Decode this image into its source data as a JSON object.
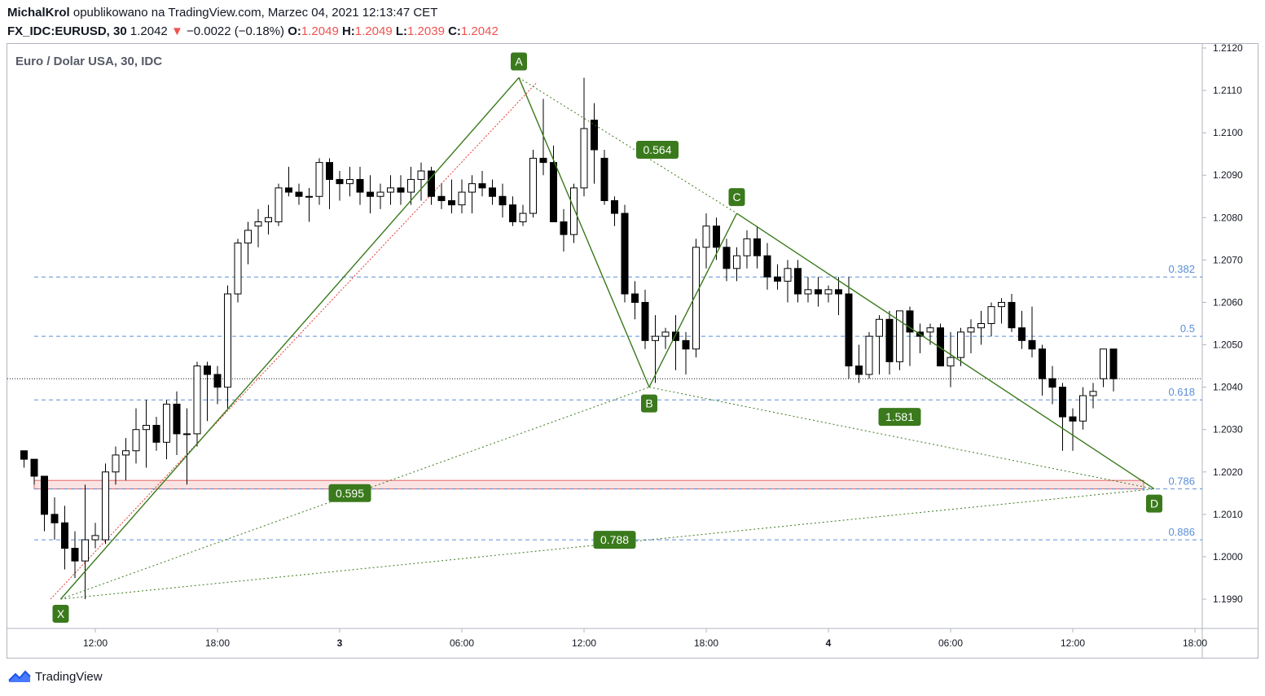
{
  "header": {
    "author": "MichalKrol",
    "published_text": "opublikowano na TradingView.com, Marzec 04, 2021 12:13:47 CET",
    "symbol": "FX_IDC:EURUSD, 30",
    "last_price": "1.2042",
    "change_arrow": "▼",
    "change": "−0.0022 (−0.18%)",
    "o_label": "O:",
    "o_value": "1.2049",
    "h_label": "H:",
    "h_value": "1.2049",
    "l_label": "L:",
    "l_value": "1.2039",
    "c_label": "C:",
    "c_value": "1.2042"
  },
  "chart_title": "Euro / Dolar USA, 30, IDC",
  "brand": "TradingView",
  "colors": {
    "pattern_green": "#3a7a1c",
    "fib_blue": "#5b8fd6",
    "zone_red": "#e06666",
    "zone_fill": "#fbe3e3",
    "down_red": "#ef5350",
    "candle": "#000000"
  },
  "chart_data": {
    "type": "candlestick",
    "ylim": [
      1.1983,
      1.2123
    ],
    "x_start_hour": 8.5,
    "x_end_hour": 60.5,
    "bar_hours": 0.5,
    "price_ticks": [
      "1.2120",
      "1.2110",
      "1.2100",
      "1.2090",
      "1.2080",
      "1.2070",
      "1.2060",
      "1.2050",
      "1.2040",
      "1.2030",
      "1.2020",
      "1.2010",
      "1.2000",
      "1.1990"
    ],
    "time_ticks": [
      {
        "label": "12:00",
        "hour": 12
      },
      {
        "label": "18:00",
        "hour": 18
      },
      {
        "label": "3",
        "hour": 24
      },
      {
        "label": "06:00",
        "hour": 30
      },
      {
        "label": "12:00",
        "hour": 36
      },
      {
        "label": "18:00",
        "hour": 42
      },
      {
        "label": "4",
        "hour": 48
      },
      {
        "label": "06:00",
        "hour": 54
      },
      {
        "label": "12:00",
        "hour": 60
      },
      {
        "label": "18:00",
        "hour": 66
      }
    ],
    "candles": [
      [
        1.2025,
        1.2025,
        1.2021,
        1.2023
      ],
      [
        1.2023,
        1.2023,
        1.2017,
        1.2019
      ],
      [
        1.2019,
        1.2019,
        1.2006,
        1.201
      ],
      [
        1.201,
        1.2014,
        1.2004,
        1.2008
      ],
      [
        1.2008,
        1.2012,
        1.1997,
        1.2002
      ],
      [
        1.2002,
        1.2006,
        1.1995,
        1.1999
      ],
      [
        1.1999,
        1.2017,
        1.199,
        1.2004
      ],
      [
        1.2004,
        1.2008,
        1.2002,
        1.2005
      ],
      [
        1.2004,
        1.2022,
        1.2003,
        1.202
      ],
      [
        1.202,
        1.2026,
        1.2017,
        1.2024
      ],
      [
        1.2024,
        1.2028,
        1.2018,
        1.2025
      ],
      [
        1.2025,
        1.2035,
        1.2022,
        1.203
      ],
      [
        1.203,
        1.2037,
        1.2021,
        1.2031
      ],
      [
        1.2031,
        1.2033,
        1.2025,
        1.2027
      ],
      [
        1.2027,
        1.2037,
        1.2023,
        1.2036
      ],
      [
        1.2036,
        1.2039,
        1.2024,
        1.2029
      ],
      [
        1.2029,
        1.2035,
        1.2017,
        1.2029
      ],
      [
        1.2029,
        1.2046,
        1.2026,
        1.2045
      ],
      [
        1.2045,
        1.2046,
        1.2032,
        1.2043
      ],
      [
        1.2043,
        1.2045,
        1.2036,
        1.204
      ],
      [
        1.204,
        1.2064,
        1.2035,
        1.2062
      ],
      [
        1.2062,
        1.2075,
        1.206,
        1.2074
      ],
      [
        1.2074,
        1.2079,
        1.2069,
        1.2077
      ],
      [
        1.2078,
        1.2082,
        1.2073,
        1.2079
      ],
      [
        1.2079,
        1.2083,
        1.2076,
        1.208
      ],
      [
        1.2079,
        1.2088,
        1.2078,
        1.2087
      ],
      [
        1.2087,
        1.2092,
        1.2085,
        1.2086
      ],
      [
        1.2086,
        1.2088,
        1.2083,
        1.2085
      ],
      [
        1.2085,
        1.2087,
        1.2079,
        1.2085
      ],
      [
        1.2085,
        1.2094,
        1.2083,
        1.2093
      ],
      [
        1.2093,
        1.2094,
        1.2082,
        1.2089
      ],
      [
        1.2089,
        1.2091,
        1.2084,
        1.2088
      ],
      [
        1.2088,
        1.2092,
        1.2085,
        1.2089
      ],
      [
        1.2089,
        1.2092,
        1.2083,
        1.2086
      ],
      [
        1.2086,
        1.209,
        1.2081,
        1.2085
      ],
      [
        1.2085,
        1.2088,
        1.2082,
        1.2086
      ],
      [
        1.2086,
        1.209,
        1.2083,
        1.2087
      ],
      [
        1.2087,
        1.209,
        1.2083,
        1.2086
      ],
      [
        1.2086,
        1.2092,
        1.2083,
        1.2089
      ],
      [
        1.2089,
        1.2093,
        1.2084,
        1.2091
      ],
      [
        1.2091,
        1.2092,
        1.2083,
        1.2085
      ],
      [
        1.2085,
        1.2088,
        1.2082,
        1.2084
      ],
      [
        1.2084,
        1.2089,
        1.2081,
        1.2083
      ],
      [
        1.2083,
        1.2089,
        1.2081,
        1.2086
      ],
      [
        1.2086,
        1.209,
        1.2081,
        1.2088
      ],
      [
        1.2088,
        1.2091,
        1.2085,
        1.2087
      ],
      [
        1.2087,
        1.2089,
        1.2083,
        1.2085
      ],
      [
        1.2085,
        1.2088,
        1.208,
        1.2083
      ],
      [
        1.2083,
        1.2085,
        1.2078,
        1.2079
      ],
      [
        1.2079,
        1.2083,
        1.2078,
        1.2081
      ],
      [
        1.2081,
        1.2096,
        1.208,
        1.2094
      ],
      [
        1.2094,
        1.2108,
        1.209,
        1.2093
      ],
      [
        1.2093,
        1.2097,
        1.2079,
        1.2079
      ],
      [
        1.2079,
        1.2082,
        1.2072,
        1.2076
      ],
      [
        1.2076,
        1.2088,
        1.2074,
        1.2087
      ],
      [
        1.2087,
        1.2113,
        1.2085,
        1.2101
      ],
      [
        1.2103,
        1.2107,
        1.2088,
        1.2096
      ],
      [
        1.2094,
        1.2096,
        1.2083,
        1.2084
      ],
      [
        1.2084,
        1.2085,
        1.2078,
        1.2081
      ],
      [
        1.2081,
        1.2083,
        1.206,
        1.2062
      ],
      [
        1.2062,
        1.2065,
        1.2056,
        1.206
      ],
      [
        1.206,
        1.2063,
        1.2049,
        1.2051
      ],
      [
        1.2051,
        1.2057,
        1.2041,
        1.2052
      ],
      [
        1.2052,
        1.2054,
        1.2049,
        1.2053
      ],
      [
        1.2053,
        1.2057,
        1.2044,
        1.2051
      ],
      [
        1.2051,
        1.2053,
        1.2043,
        1.2049
      ],
      [
        1.2049,
        1.2075,
        1.2047,
        1.2073
      ],
      [
        1.2073,
        1.2081,
        1.2068,
        1.2078
      ],
      [
        1.2078,
        1.208,
        1.207,
        1.2073
      ],
      [
        1.2073,
        1.2075,
        1.2065,
        1.2068
      ],
      [
        1.2068,
        1.2073,
        1.2065,
        1.2071
      ],
      [
        1.2071,
        1.2077,
        1.2068,
        1.2075
      ],
      [
        1.2075,
        1.2078,
        1.2068,
        1.2071
      ],
      [
        1.2071,
        1.2074,
        1.2063,
        1.2066
      ],
      [
        1.2066,
        1.2069,
        1.2063,
        1.2065
      ],
      [
        1.2065,
        1.207,
        1.206,
        1.2068
      ],
      [
        1.2068,
        1.207,
        1.206,
        1.2062
      ],
      [
        1.2062,
        1.2066,
        1.206,
        1.2063
      ],
      [
        1.2063,
        1.2066,
        1.2059,
        1.2062
      ],
      [
        1.2062,
        1.2064,
        1.206,
        1.2063
      ],
      [
        1.2063,
        1.2066,
        1.2057,
        1.2062
      ],
      [
        1.2062,
        1.2066,
        1.2042,
        1.2045
      ],
      [
        1.2045,
        1.205,
        1.2041,
        1.2043
      ],
      [
        1.2043,
        1.2053,
        1.2042,
        1.2052
      ],
      [
        1.2052,
        1.2057,
        1.2043,
        1.2056
      ],
      [
        1.2056,
        1.2058,
        1.2043,
        1.2046
      ],
      [
        1.2046,
        1.2058,
        1.2044,
        1.2058
      ],
      [
        1.2058,
        1.2059,
        1.2045,
        1.2053
      ],
      [
        1.2053,
        1.2055,
        1.2048,
        1.2052
      ],
      [
        1.2053,
        1.2055,
        1.205,
        1.2054
      ],
      [
        1.2054,
        1.2055,
        1.2045,
        1.2045
      ],
      [
        1.2045,
        1.2053,
        1.204,
        1.2047
      ],
      [
        1.2047,
        1.2054,
        1.2045,
        1.2053
      ],
      [
        1.2053,
        1.2056,
        1.2048,
        1.2054
      ],
      [
        1.2054,
        1.2058,
        1.205,
        1.2055
      ],
      [
        1.2055,
        1.206,
        1.2052,
        1.2059
      ],
      [
        1.2059,
        1.2061,
        1.2055,
        1.206
      ],
      [
        1.206,
        1.2062,
        1.2053,
        1.2054
      ],
      [
        1.2054,
        1.2058,
        1.2049,
        1.2051
      ],
      [
        1.2051,
        1.2059,
        1.2047,
        1.2049
      ],
      [
        1.2049,
        1.205,
        1.2038,
        1.2042
      ],
      [
        1.2042,
        1.2045,
        1.2036,
        1.204
      ],
      [
        1.204,
        1.2041,
        1.2025,
        1.2033
      ],
      [
        1.2033,
        1.2035,
        1.2025,
        1.2032
      ],
      [
        1.2032,
        1.204,
        1.203,
        1.2038
      ],
      [
        1.2038,
        1.2041,
        1.2035,
        1.2039
      ],
      [
        1.2042,
        1.2049,
        1.204,
        1.2049
      ],
      [
        1.2049,
        1.2049,
        1.2039,
        1.2042
      ]
    ],
    "fib_levels": [
      {
        "label": "0.382",
        "price": 1.2066
      },
      {
        "label": "0.5",
        "price": 1.2052
      },
      {
        "label": "0.618",
        "price": 1.2037
      },
      {
        "label": "0.786",
        "price": 1.2016
      },
      {
        "label": "0.886",
        "price": 1.2004
      }
    ],
    "current_price": 1.2042,
    "zone": {
      "top": 1.2018,
      "bottom": 1.2016
    },
    "pattern_points": [
      {
        "label": "X",
        "hour": 10.3,
        "price": 1.199
      },
      {
        "label": "A",
        "hour": 32.8,
        "price": 1.2113
      },
      {
        "label": "B",
        "hour": 39.2,
        "price": 1.204
      },
      {
        "label": "C",
        "hour": 43.5,
        "price": 1.2081
      },
      {
        "label": "D",
        "hour": 64.0,
        "price": 1.2016
      }
    ],
    "ratios": [
      {
        "label": "0.564",
        "hour": 39.6,
        "price": 1.2096
      },
      {
        "label": "0.595",
        "hour": 24.5,
        "price": 1.2015
      },
      {
        "label": "1.581",
        "hour": 51.5,
        "price": 1.2033
      },
      {
        "label": "0.788",
        "hour": 37.5,
        "price": 1.2004
      }
    ]
  }
}
